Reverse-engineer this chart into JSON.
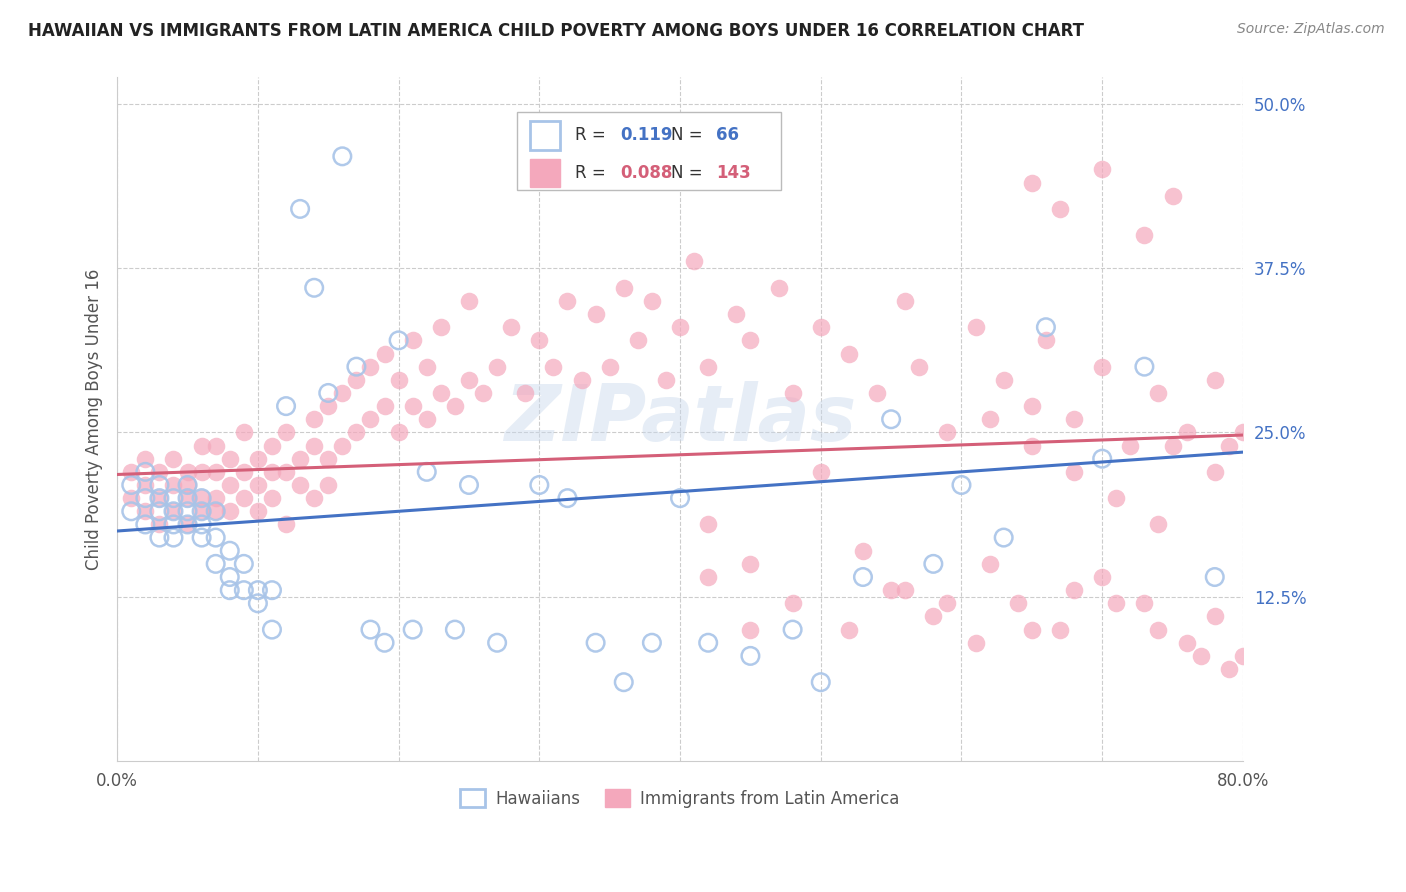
{
  "title": "HAWAIIAN VS IMMIGRANTS FROM LATIN AMERICA CHILD POVERTY AMONG BOYS UNDER 16 CORRELATION CHART",
  "source": "Source: ZipAtlas.com",
  "ylabel": "Child Poverty Among Boys Under 16",
  "xlim": [
    0.0,
    0.8
  ],
  "ylim": [
    0.0,
    0.52
  ],
  "xtick_positions": [
    0.0,
    0.1,
    0.2,
    0.3,
    0.4,
    0.5,
    0.6,
    0.7,
    0.8
  ],
  "yticks_right": [
    0.125,
    0.25,
    0.375,
    0.5
  ],
  "yticklabels_right": [
    "12.5%",
    "25.0%",
    "37.5%",
    "50.0%"
  ],
  "legend_blue_R": "0.119",
  "legend_blue_N": "66",
  "legend_pink_R": "0.088",
  "legend_pink_N": "143",
  "legend_label_blue": "Hawaiians",
  "legend_label_pink": "Immigrants from Latin America",
  "blue_scatter_color": "#a8c4e8",
  "pink_scatter_color": "#f4a8bc",
  "blue_line_color": "#4472c4",
  "pink_line_color": "#d45f78",
  "watermark": "ZIPatlas",
  "blue_trend": [
    0.175,
    0.235
  ],
  "pink_trend": [
    0.218,
    0.248
  ],
  "blue_x": [
    0.01,
    0.01,
    0.02,
    0.02,
    0.02,
    0.03,
    0.03,
    0.03,
    0.03,
    0.04,
    0.04,
    0.04,
    0.04,
    0.05,
    0.05,
    0.05,
    0.05,
    0.06,
    0.06,
    0.06,
    0.06,
    0.07,
    0.07,
    0.07,
    0.08,
    0.08,
    0.08,
    0.09,
    0.09,
    0.1,
    0.1,
    0.11,
    0.11,
    0.12,
    0.13,
    0.14,
    0.15,
    0.16,
    0.17,
    0.18,
    0.19,
    0.2,
    0.21,
    0.22,
    0.24,
    0.25,
    0.27,
    0.3,
    0.32,
    0.34,
    0.36,
    0.38,
    0.4,
    0.42,
    0.45,
    0.48,
    0.5,
    0.53,
    0.55,
    0.58,
    0.6,
    0.63,
    0.66,
    0.7,
    0.73,
    0.78
  ],
  "blue_y": [
    0.19,
    0.21,
    0.18,
    0.2,
    0.22,
    0.19,
    0.17,
    0.2,
    0.21,
    0.18,
    0.19,
    0.2,
    0.17,
    0.18,
    0.2,
    0.19,
    0.21,
    0.18,
    0.2,
    0.17,
    0.19,
    0.15,
    0.17,
    0.19,
    0.14,
    0.16,
    0.13,
    0.15,
    0.13,
    0.12,
    0.13,
    0.13,
    0.1,
    0.27,
    0.42,
    0.36,
    0.28,
    0.46,
    0.3,
    0.1,
    0.09,
    0.32,
    0.1,
    0.22,
    0.1,
    0.21,
    0.09,
    0.21,
    0.2,
    0.09,
    0.06,
    0.09,
    0.2,
    0.09,
    0.08,
    0.1,
    0.06,
    0.14,
    0.26,
    0.15,
    0.21,
    0.17,
    0.33,
    0.23,
    0.3,
    0.14
  ],
  "pink_x": [
    0.01,
    0.01,
    0.02,
    0.02,
    0.02,
    0.03,
    0.03,
    0.03,
    0.04,
    0.04,
    0.04,
    0.05,
    0.05,
    0.05,
    0.05,
    0.06,
    0.06,
    0.06,
    0.06,
    0.07,
    0.07,
    0.07,
    0.07,
    0.08,
    0.08,
    0.08,
    0.09,
    0.09,
    0.09,
    0.1,
    0.1,
    0.1,
    0.11,
    0.11,
    0.11,
    0.12,
    0.12,
    0.12,
    0.13,
    0.13,
    0.14,
    0.14,
    0.14,
    0.15,
    0.15,
    0.15,
    0.16,
    0.16,
    0.17,
    0.17,
    0.18,
    0.18,
    0.19,
    0.19,
    0.2,
    0.2,
    0.21,
    0.21,
    0.22,
    0.22,
    0.23,
    0.23,
    0.24,
    0.25,
    0.25,
    0.26,
    0.27,
    0.28,
    0.29,
    0.3,
    0.31,
    0.32,
    0.33,
    0.34,
    0.35,
    0.36,
    0.37,
    0.38,
    0.39,
    0.4,
    0.41,
    0.42,
    0.44,
    0.45,
    0.47,
    0.48,
    0.5,
    0.52,
    0.54,
    0.56,
    0.57,
    0.59,
    0.61,
    0.63,
    0.65,
    0.66,
    0.68,
    0.7,
    0.72,
    0.74,
    0.76,
    0.78,
    0.79,
    0.65,
    0.67,
    0.7,
    0.73,
    0.75,
    0.42,
    0.45,
    0.48,
    0.52,
    0.55,
    0.58,
    0.61,
    0.64,
    0.67,
    0.7,
    0.73,
    0.76,
    0.78,
    0.8,
    0.42,
    0.45,
    0.5,
    0.53,
    0.56,
    0.59,
    0.62,
    0.65,
    0.68,
    0.71,
    0.74,
    0.77,
    0.79,
    0.75,
    0.78,
    0.8,
    0.62,
    0.65,
    0.68,
    0.71,
    0.74
  ],
  "pink_y": [
    0.2,
    0.22,
    0.19,
    0.21,
    0.23,
    0.2,
    0.22,
    0.18,
    0.21,
    0.19,
    0.23,
    0.2,
    0.22,
    0.18,
    0.21,
    0.2,
    0.22,
    0.19,
    0.24,
    0.2,
    0.22,
    0.19,
    0.24,
    0.21,
    0.19,
    0.23,
    0.2,
    0.22,
    0.25,
    0.21,
    0.23,
    0.19,
    0.22,
    0.24,
    0.2,
    0.22,
    0.25,
    0.18,
    0.23,
    0.21,
    0.24,
    0.26,
    0.2,
    0.23,
    0.27,
    0.21,
    0.24,
    0.28,
    0.25,
    0.29,
    0.26,
    0.3,
    0.27,
    0.31,
    0.25,
    0.29,
    0.27,
    0.32,
    0.26,
    0.3,
    0.28,
    0.33,
    0.27,
    0.29,
    0.35,
    0.28,
    0.3,
    0.33,
    0.28,
    0.32,
    0.3,
    0.35,
    0.29,
    0.34,
    0.3,
    0.36,
    0.32,
    0.35,
    0.29,
    0.33,
    0.38,
    0.3,
    0.34,
    0.32,
    0.36,
    0.28,
    0.33,
    0.31,
    0.28,
    0.35,
    0.3,
    0.25,
    0.33,
    0.29,
    0.27,
    0.32,
    0.26,
    0.3,
    0.24,
    0.28,
    0.25,
    0.29,
    0.24,
    0.44,
    0.42,
    0.45,
    0.4,
    0.43,
    0.14,
    0.1,
    0.12,
    0.1,
    0.13,
    0.11,
    0.09,
    0.12,
    0.1,
    0.14,
    0.12,
    0.09,
    0.11,
    0.08,
    0.18,
    0.15,
    0.22,
    0.16,
    0.13,
    0.12,
    0.15,
    0.1,
    0.13,
    0.12,
    0.1,
    0.08,
    0.07,
    0.24,
    0.22,
    0.25,
    0.26,
    0.24,
    0.22,
    0.2,
    0.18
  ]
}
